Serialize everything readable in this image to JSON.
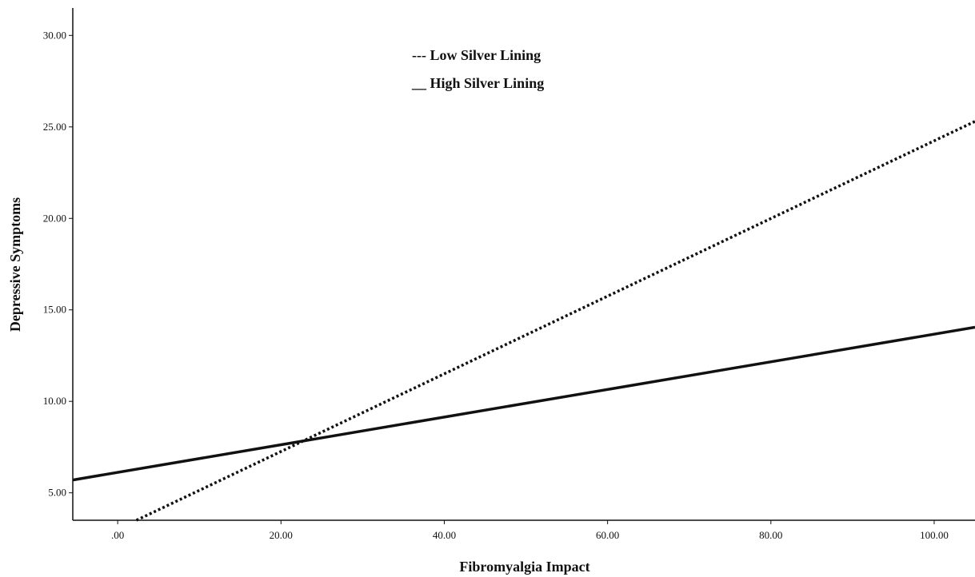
{
  "chart_data": {
    "type": "line",
    "title": "",
    "xlabel": "Fibromyalgia Impact",
    "ylabel": "Depressive Symptoms",
    "xlim": [
      -5.5,
      105
    ],
    "ylim": [
      3.5,
      31.5
    ],
    "xticks": [
      0,
      20,
      40,
      60,
      80,
      100
    ],
    "xtick_labels": [
      ".00",
      "20.00",
      "40.00",
      "60.00",
      "80.00",
      "100.00"
    ],
    "yticks": [
      5,
      10,
      15,
      20,
      25,
      30
    ],
    "ytick_labels": [
      "5.00",
      "10.00",
      "15.00",
      "20.00",
      "25.00",
      "30.00"
    ],
    "grid": false,
    "legend_position": "top-center",
    "series": [
      {
        "name": "Low Silver Lining",
        "legend_label": "--- Low Silver Lining",
        "style": "dotted",
        "color": "#111111",
        "x": [
          2.3,
          105
        ],
        "y": [
          3.5,
          25.3
        ]
      },
      {
        "name": "High Silver Lining",
        "legend_label": "__ High Silver Lining",
        "style": "solid",
        "color": "#111111",
        "x": [
          -5.5,
          105
        ],
        "y": [
          5.7,
          14.05
        ]
      }
    ]
  }
}
